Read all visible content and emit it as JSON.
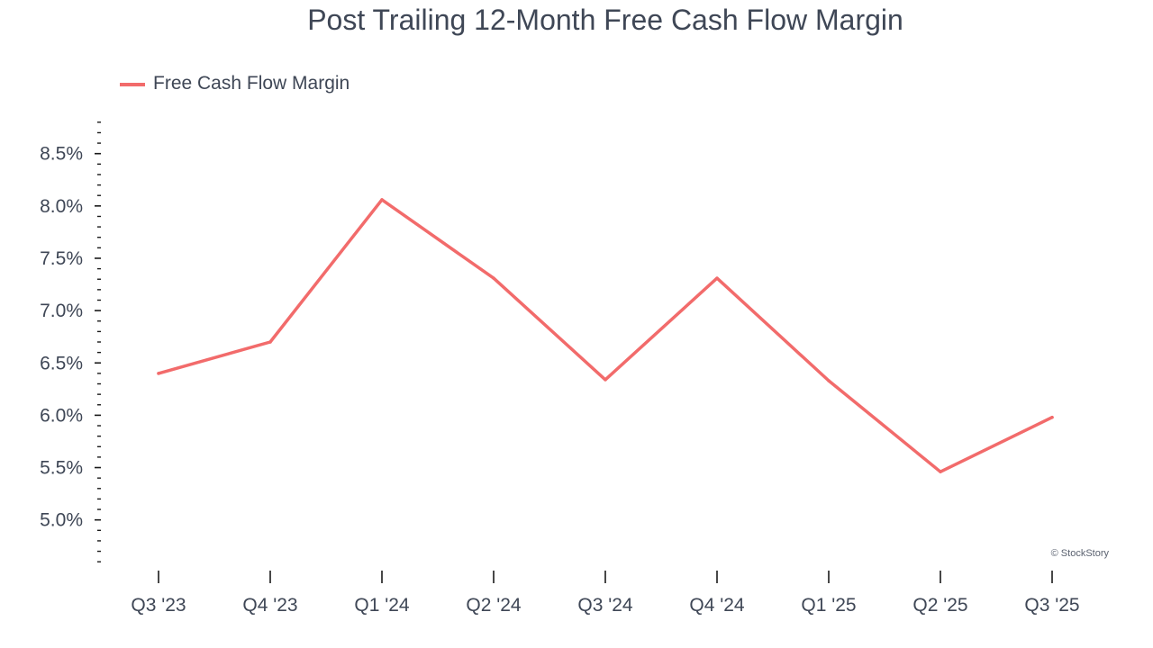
{
  "chart_data": {
    "type": "line",
    "title": "Post Trailing 12-Month Free Cash Flow Margin",
    "xlabel": "",
    "ylabel": "",
    "categories": [
      "Q3 '23",
      "Q4 '23",
      "Q1 '24",
      "Q2 '24",
      "Q3 '24",
      "Q4 '24",
      "Q1 '25",
      "Q2 '25",
      "Q3 '25"
    ],
    "series": [
      {
        "name": "Free Cash Flow Margin",
        "color": "#f26b6b",
        "values": [
          6.4,
          6.7,
          8.06,
          7.31,
          6.34,
          7.31,
          6.33,
          5.46,
          5.98
        ]
      }
    ],
    "ylim": [
      4.55,
      8.85
    ],
    "yticks": [
      5.0,
      5.5,
      6.0,
      6.5,
      7.0,
      7.5,
      8.0,
      8.5
    ],
    "ytick_labels": [
      "5.0%",
      "5.5%",
      "6.0%",
      "6.5%",
      "7.0%",
      "7.5%",
      "8.0%",
      "8.5%"
    ],
    "y_minor_step": 0.1,
    "grid": false,
    "legend_position": "top-left",
    "axis_color": "#1a1a1a",
    "text_color": "#3f4756"
  },
  "credit": "© StockStory"
}
